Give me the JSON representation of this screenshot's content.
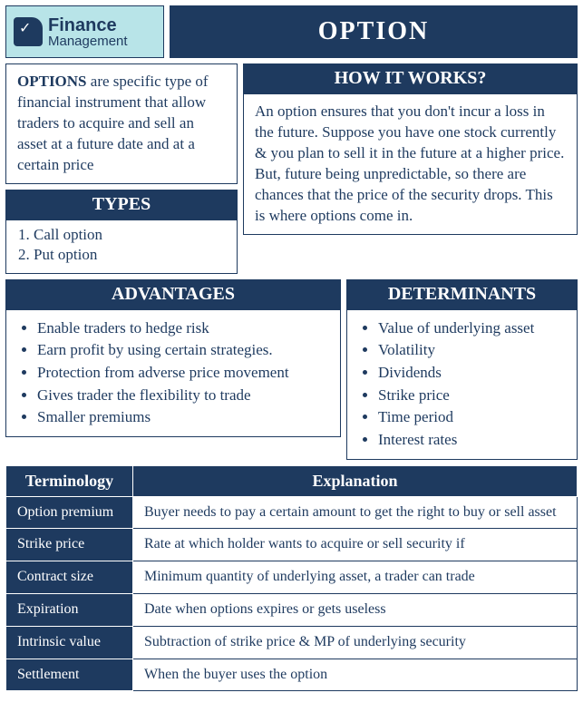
{
  "colors": {
    "primary": "#1e3a5f",
    "logo_bg": "#b8e4e8",
    "white": "#ffffff"
  },
  "logo": {
    "line1": "Finance",
    "line2": "Management"
  },
  "title": "OPTION",
  "definition": {
    "bold": "OPTIONS",
    "rest": " are specific type of financial instrument that allow traders to acquire and sell an asset at a future date and at a certain price"
  },
  "types": {
    "header": "TYPES",
    "items": [
      "Call option",
      "Put option"
    ]
  },
  "how_it_works": {
    "header": "HOW IT WORKS?",
    "body": "An option ensures that you don't incur a loss in the future. Suppose you have one stock currently & you plan to sell it in the future at a higher price. But, future being unpredictable, so there are chances that the price of the security drops. This is where options come in."
  },
  "advantages": {
    "header": "ADVANTAGES",
    "items": [
      "Enable traders to hedge risk",
      "Earn profit by using certain strategies.",
      "Protection from adverse price movement",
      "Gives trader the flexibility to trade",
      "Smaller premiums"
    ]
  },
  "determinants": {
    "header": "DETERMINANTS",
    "items": [
      "Value of underlying asset",
      "Volatility",
      "Dividends",
      "Strike price",
      "Time period",
      "Interest rates"
    ]
  },
  "terminology": {
    "col1": "Terminology",
    "col2": "Explanation",
    "rows": [
      {
        "term": "Option premium",
        "exp": "Buyer needs to pay a certain amount to get the right to buy or sell asset"
      },
      {
        "term": "Strike price",
        "exp": "Rate at which holder wants to acquire or sell security if"
      },
      {
        "term": "Contract size",
        "exp": "Minimum quantity of underlying asset, a trader can trade"
      },
      {
        "term": "Expiration",
        "exp": "Date when options expires or gets useless"
      },
      {
        "term": "Intrinsic value",
        "exp": "Subtraction of strike price & MP of underlying security"
      },
      {
        "term": "Settlement",
        "exp": "When the buyer uses the option"
      }
    ]
  }
}
